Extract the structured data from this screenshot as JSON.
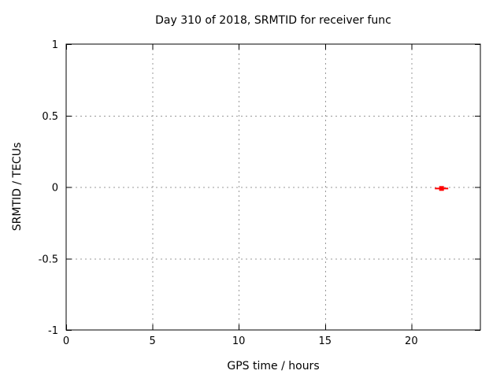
{
  "window": {
    "background": "#ffffff"
  },
  "colors": {
    "background": "#ffffff",
    "plot_border": "#000000",
    "grid": "#999999",
    "tick": "#000000",
    "text": "#000000",
    "series_red": "#ff0000"
  },
  "chart_data": {
    "type": "scatter",
    "title": "Day 310 of 2018, SRMTID for receiver func",
    "xlabel": "GPS time / hours",
    "ylabel": "SRMTID / TECUs",
    "xlim": [
      0,
      24
    ],
    "ylim": [
      -1,
      1
    ],
    "x_ticks": [
      {
        "value": 0,
        "label": "0"
      },
      {
        "value": 5,
        "label": "5"
      },
      {
        "value": 10,
        "label": "10"
      },
      {
        "value": 15,
        "label": "15"
      },
      {
        "value": 20,
        "label": "20"
      }
    ],
    "y_ticks": [
      {
        "value": -1,
        "label": "-1"
      },
      {
        "value": -0.5,
        "label": "-0.5"
      },
      {
        "value": 0,
        "label": "0"
      },
      {
        "value": 0.5,
        "label": "0.5"
      },
      {
        "value": 1,
        "label": "1"
      }
    ],
    "grid": true,
    "legend_position": "none",
    "series": [
      {
        "name": "SRMTID",
        "marker": "filled-square-with-x-errorbar",
        "color": "#ff0000",
        "points": [
          {
            "x": 21.75,
            "y": -0.01,
            "xerr": 0.25
          }
        ]
      }
    ]
  }
}
